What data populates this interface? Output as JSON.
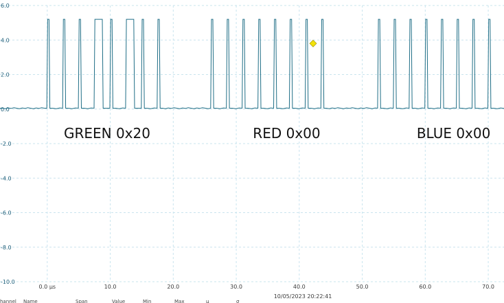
{
  "chart_data": {
    "type": "line",
    "x_unit": "µs",
    "xlim": [
      -7.5,
      72.5
    ],
    "ylim": [
      -10,
      6
    ],
    "x_ticks": [
      {
        "v": 0,
        "label": "0.0 µs"
      },
      {
        "v": 10,
        "label": "10.0"
      },
      {
        "v": 20,
        "label": "20.0"
      },
      {
        "v": 30,
        "label": "30.0"
      },
      {
        "v": 40,
        "label": "40.0"
      },
      {
        "v": 50,
        "label": "50.0"
      },
      {
        "v": 60,
        "label": "60.0"
      },
      {
        "v": 70,
        "label": "70.0"
      }
    ],
    "y_ticks": [
      {
        "v": 6,
        "label": "6.0"
      },
      {
        "v": 4,
        "label": "4.0"
      },
      {
        "v": 2,
        "label": "2.0"
      },
      {
        "v": 0,
        "label": "0.0"
      },
      {
        "v": -2,
        "label": "-2.0"
      },
      {
        "v": -4,
        "label": "-4.0"
      },
      {
        "v": -6,
        "label": "-6.0"
      },
      {
        "v": -8,
        "label": "-8.0"
      },
      {
        "v": -10,
        "label": "-10.0"
      }
    ],
    "grid": true,
    "low_level": 0.05,
    "high_level": 5.2,
    "pulses": [
      [
        0.0,
        0.35
      ],
      [
        2.5,
        2.85
      ],
      [
        5.0,
        5.35
      ],
      [
        7.5,
        8.8
      ],
      [
        10.0,
        10.35
      ],
      [
        12.5,
        13.8
      ],
      [
        15.0,
        15.35
      ],
      [
        17.5,
        17.85
      ],
      [
        26.0,
        26.35
      ],
      [
        28.5,
        28.85
      ],
      [
        31.0,
        31.35
      ],
      [
        33.5,
        33.85
      ],
      [
        36.0,
        36.35
      ],
      [
        38.5,
        38.85
      ],
      [
        41.0,
        41.35
      ],
      [
        43.5,
        43.85
      ],
      [
        52.5,
        52.85
      ],
      [
        55.0,
        55.35
      ],
      [
        57.5,
        57.85
      ],
      [
        60.0,
        60.35
      ],
      [
        62.5,
        62.85
      ],
      [
        65.0,
        65.35
      ],
      [
        67.5,
        67.85
      ],
      [
        70.0,
        70.35
      ]
    ],
    "marker": {
      "x": 42.2,
      "y": 3.8,
      "color": "#f2e20a"
    },
    "trace_color": "#1f6e86",
    "annotations": [
      {
        "x": 9.5,
        "y": -1.4,
        "text": "GREEN 0x20"
      },
      {
        "x": 38.0,
        "y": -1.4,
        "text": "RED 0x00"
      },
      {
        "x": 64.5,
        "y": -1.4,
        "text": "BLUE 0x00"
      }
    ],
    "timestamp": "10/05/2023 20:22:41",
    "footer_headers": [
      "hannel",
      "Name",
      "Span",
      "Value",
      "Min",
      "Max",
      "μ",
      "σ"
    ]
  }
}
